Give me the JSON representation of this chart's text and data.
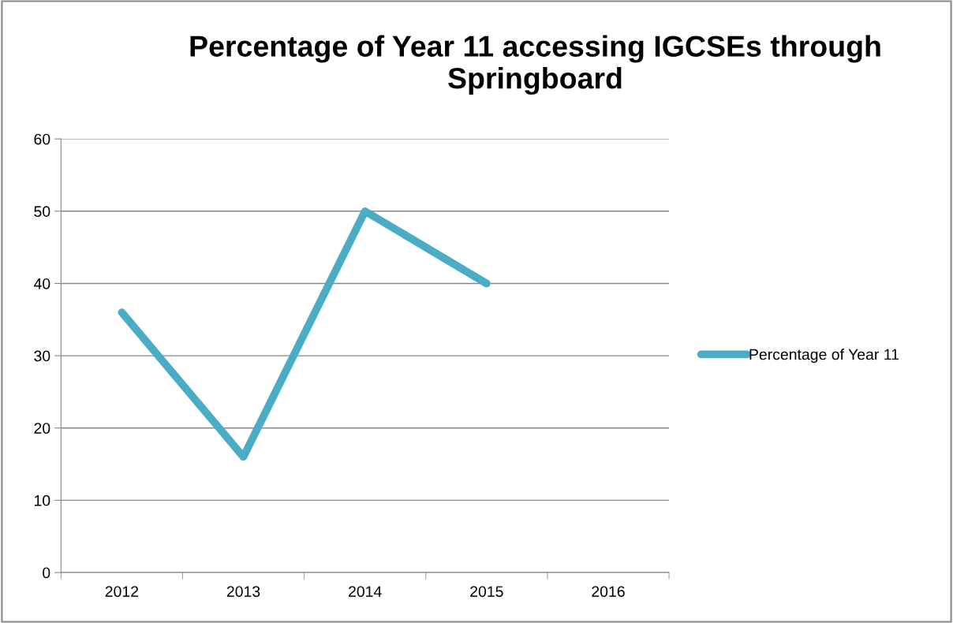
{
  "chart_data": {
    "type": "line",
    "title": "Percentage of Year 11 accessing IGCSEs through Springboard",
    "categories": [
      "2012",
      "2013",
      "2014",
      "2015",
      "2016"
    ],
    "series": [
      {
        "name": "Percentage of Year 11",
        "color": "#4bacc6",
        "values": [
          36,
          16,
          50,
          40,
          null
        ]
      }
    ],
    "ylim": [
      0,
      60
    ],
    "yticks": [
      0,
      10,
      20,
      30,
      40,
      50,
      60
    ],
    "grid": "y",
    "legend": "right",
    "marker": "none",
    "line_style": "solid"
  }
}
